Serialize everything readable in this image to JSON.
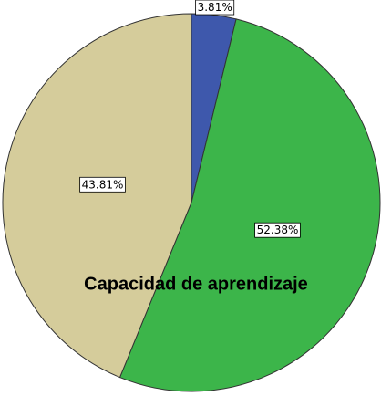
{
  "chart_data": {
    "type": "pie",
    "values": [
      3.81,
      52.38,
      43.81
    ],
    "value_labels": [
      "3.81%",
      "52.38%",
      "43.81%"
    ],
    "colors": [
      "#3e58ac",
      "#3cb54a",
      "#d5cc9b"
    ],
    "annotation": "Capacidad de aprendizaje"
  }
}
